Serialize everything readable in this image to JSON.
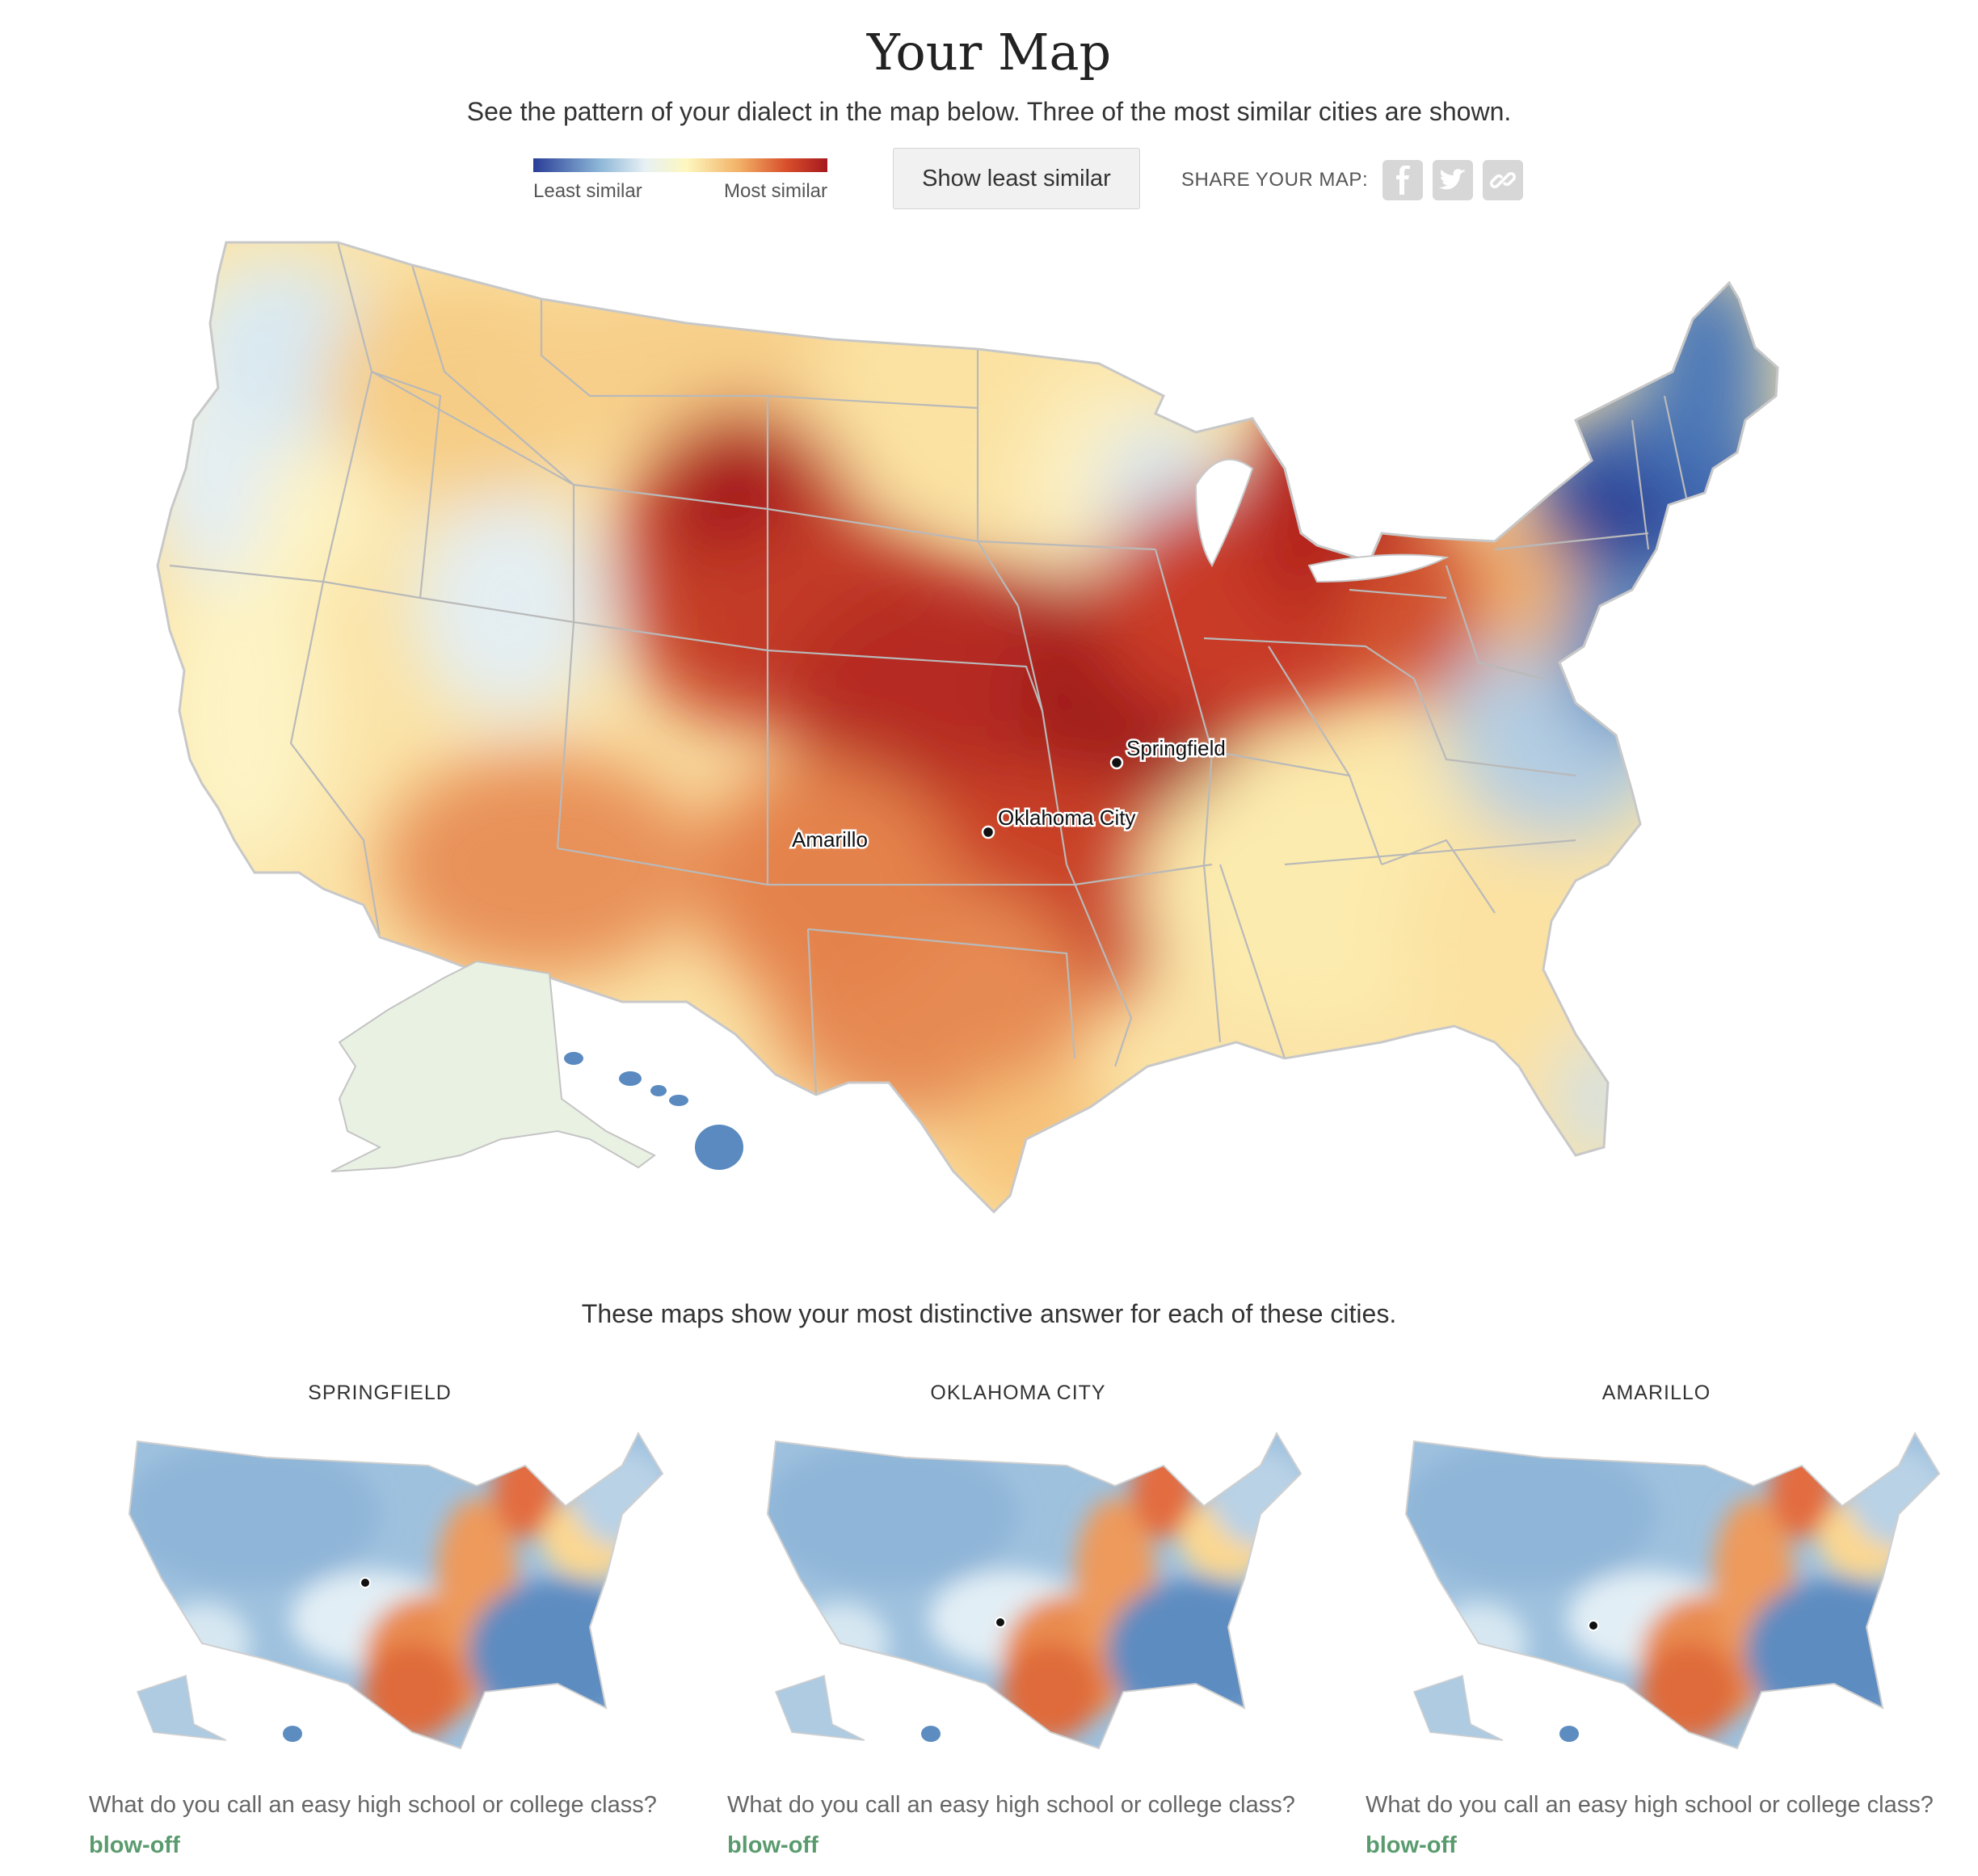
{
  "header": {
    "title": "Your Map",
    "subtitle": "See the pattern of your dialect in the map below. Three of the most similar cities are shown."
  },
  "legend": {
    "left_label": "Least similar",
    "right_label": "Most similar",
    "colors": [
      "#2a3d97",
      "#8ab4d6",
      "#e7f1f4",
      "#fdf7bf",
      "#f2b166",
      "#d84f2c",
      "#a5191e"
    ]
  },
  "controls": {
    "least_similar_button": "Show least similar"
  },
  "share": {
    "label": "SHARE YOUR MAP:",
    "icons": [
      "facebook-icon",
      "twitter-icon",
      "link-icon"
    ]
  },
  "map": {
    "cities": [
      {
        "name": "Springfield"
      },
      {
        "name": "Oklahoma City"
      },
      {
        "name": "Amarillo"
      }
    ]
  },
  "distinctive": {
    "intro": "These maps show your most distinctive answer for each of these cities.",
    "cards": [
      {
        "city": "SPRINGFIELD",
        "question": "What do you call an easy high school or college class?",
        "answer": "blow-off"
      },
      {
        "city": "OKLAHOMA CITY",
        "question": "What do you call an easy high school or college class?",
        "answer": "blow-off"
      },
      {
        "city": "AMARILLO",
        "question": "What do you call an easy high school or college class?",
        "answer": "blow-off"
      }
    ]
  }
}
